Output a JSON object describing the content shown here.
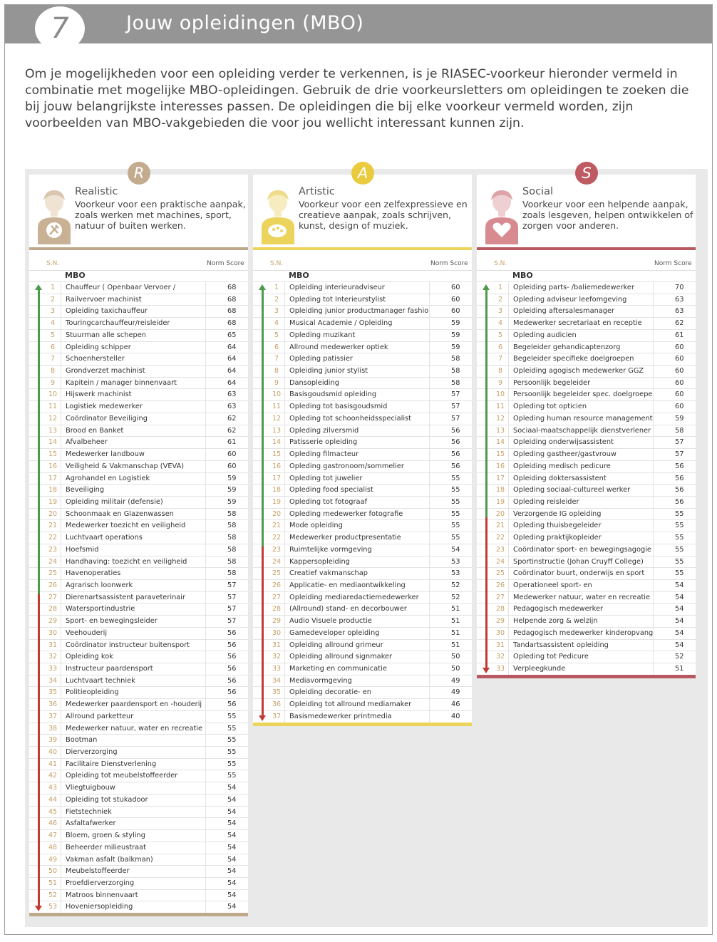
{
  "header": {
    "step": "7",
    "title": "Jouw opleidingen (MBO)"
  },
  "intro": "Om je mogelijkheden voor een opleiding verder te verkennen, is je RIASEC-voorkeur hieronder vermeld in combinatie met mogelijke MBO-opleidingen. Gebruik de drie voorkeursletters om opleidingen te zoeken die bij jouw belangrijkste interesses passen. De opleidingen die bij elke voorkeur vermeld worden, zijn voorbeelden van MBO-vakgebieden die voor jou wellicht interessant kunnen zijn.",
  "table_labels": {
    "sn": "S.N.",
    "norm_score": "Norm Score",
    "group": "MBO"
  },
  "colors": {
    "realistic": "#bfa98c",
    "artistic": "#ecd35c",
    "social": "#b85861",
    "up": "#4c9a4a",
    "down": "#c23b35"
  },
  "columns": [
    {
      "key": "r",
      "letter": "R",
      "title": "Realistic",
      "description": "Voorkeur voor een praktische aanpak, zoals werken met machines, sport, natuur of buiten werken.",
      "icon": "wrench-figure-icon",
      "items": [
        [
          "Chauffeur ( Openbaar Vervoer /",
          "68"
        ],
        [
          "Railvervoer machinist",
          "68"
        ],
        [
          "Opleiding taxichauffeur",
          "68"
        ],
        [
          "Touringcarchauffeur/reisleider",
          "68"
        ],
        [
          "Stuurman alle schepen",
          "65"
        ],
        [
          "Opleiding schipper",
          "64"
        ],
        [
          "Schoenhersteller",
          "64"
        ],
        [
          "Grondverzet machinist",
          "64"
        ],
        [
          "Kapitein / manager binnenvaart",
          "64"
        ],
        [
          "Hijswerk machinist",
          "63"
        ],
        [
          "Logistiek medewerker",
          "63"
        ],
        [
          "Coördinator Beveiliging",
          "62"
        ],
        [
          "Brood en Banket",
          "62"
        ],
        [
          "Afvalbeheer",
          "61"
        ],
        [
          "Medewerker landbouw",
          "60"
        ],
        [
          "Veiligheid & Vakmanschap (VEVA)",
          "60"
        ],
        [
          "Agrohandel en Logistiek",
          "59"
        ],
        [
          "Beveiliging",
          "59"
        ],
        [
          "Opleiding militair (defensie)",
          "59"
        ],
        [
          "Schoonmaak en Glazenwassen",
          "58"
        ],
        [
          "Medewerker toezicht en veiligheid",
          "58"
        ],
        [
          "Luchtvaart operations",
          "58"
        ],
        [
          "Hoefsmid",
          "58"
        ],
        [
          "Handhaving: toezicht en veiligheid",
          "58"
        ],
        [
          "Havenoperaties",
          "58"
        ],
        [
          "Agrarisch loonwerk",
          "57"
        ],
        [
          "Dierenartsassistent paraveterinair",
          "57"
        ],
        [
          "Watersportindustrie",
          "57"
        ],
        [
          "Sport- en bewegingsleider",
          "57"
        ],
        [
          "Veehouderij",
          "56"
        ],
        [
          "Coördinator instructeur buitensport",
          "56"
        ],
        [
          "Opleiding kok",
          "56"
        ],
        [
          "Instructeur paardensport",
          "56"
        ],
        [
          "Luchtvaart techniek",
          "56"
        ],
        [
          "Politieopleiding",
          "56"
        ],
        [
          "Medewerker paardensport en -houderij",
          "56"
        ],
        [
          "Allround parketteur",
          "55"
        ],
        [
          "Medewerker natuur, water en recreatie",
          "55"
        ],
        [
          "Bootman",
          "55"
        ],
        [
          "Dierverzorging",
          "55"
        ],
        [
          "Facilitaire Dienstverlening",
          "55"
        ],
        [
          "Opleiding tot meubelstoffeerder",
          "55"
        ],
        [
          "Vliegtuigbouw",
          "54"
        ],
        [
          "Opleiding tot stukadoor",
          "54"
        ],
        [
          "Fietstechniek",
          "54"
        ],
        [
          "Asfaltafwerker",
          "54"
        ],
        [
          "Bloem, groen & styling",
          "54"
        ],
        [
          "Beheerder milieustraat",
          "54"
        ],
        [
          "Vakman asfalt (balkman)",
          "54"
        ],
        [
          "Meubelstoffeerder",
          "54"
        ],
        [
          "Proefdierverzorging",
          "54"
        ],
        [
          "Matroos binnenvaart",
          "54"
        ],
        [
          "Hoveniersopleiding",
          "54"
        ]
      ]
    },
    {
      "key": "a",
      "letter": "A",
      "title": "Artistic",
      "description": "Voorkeur voor een zelfexpressieve en creatieve aanpak, zoals schrijven, kunst, design of muziek.",
      "icon": "palette-figure-icon",
      "items": [
        [
          "Opleiding interieuradviseur",
          "60"
        ],
        [
          "Opleding tot Interieurstylist",
          "60"
        ],
        [
          "Opleiding junior productmanager fashion",
          "60"
        ],
        [
          "Musical Academie / Opleiding",
          "59"
        ],
        [
          "Opleding muzikant",
          "59"
        ],
        [
          "Allround medewerker optiek",
          "59"
        ],
        [
          "Opleding patissier",
          "58"
        ],
        [
          "Opleiding junior stylist",
          "58"
        ],
        [
          "Dansopleiding",
          "58"
        ],
        [
          "Basisgoudsmid opleiding",
          "57"
        ],
        [
          "Opleding tot basisgoudsmid",
          "57"
        ],
        [
          "Opleding tot schoonheidsspecialist",
          "57"
        ],
        [
          "Opleding zilversmid",
          "56"
        ],
        [
          "Patisserie opleiding",
          "56"
        ],
        [
          "Opleding filmacteur",
          "56"
        ],
        [
          "Opleding gastronoom/sommelier",
          "56"
        ],
        [
          "Opleding tot juwelier",
          "55"
        ],
        [
          "Opleding food specialist",
          "55"
        ],
        [
          "Opleding tot fotograaf",
          "55"
        ],
        [
          "Opleding medewerker fotografie",
          "55"
        ],
        [
          "Mode opleiding",
          "55"
        ],
        [
          "Medewerker productpresentatie",
          "55"
        ],
        [
          "Ruimtelijke vormgeving",
          "54"
        ],
        [
          "Kappersopleiding",
          "53"
        ],
        [
          "Creatief vakmanschap",
          "53"
        ],
        [
          "Applicatie- en mediaontwikkeling",
          "52"
        ],
        [
          "Opleiding mediaredactiemedewerker",
          "52"
        ],
        [
          "(Allround) stand- en decorbouwer",
          "51"
        ],
        [
          "Audio Visuele productie",
          "51"
        ],
        [
          "Gamedeveloper opleiding",
          "51"
        ],
        [
          "Opleiding allround grimeur",
          "51"
        ],
        [
          "Opleiding allround signmaker",
          "50"
        ],
        [
          "Marketing en communicatie",
          "50"
        ],
        [
          "Mediavormgeving",
          "49"
        ],
        [
          "Opleiding decoratie- en",
          "49"
        ],
        [
          "Opleiding tot allround mediamaker",
          "46"
        ],
        [
          "Basismedewerker printmedia",
          "40"
        ]
      ]
    },
    {
      "key": "s",
      "letter": "S",
      "title": "Social",
      "description": "Voorkeur voor een helpende aanpak, zoals lesgeven, helpen ontwikkelen of zorgen voor anderen.",
      "icon": "heart-figure-icon",
      "items": [
        [
          "Opleiding parts- /baliemedewerker",
          "70"
        ],
        [
          "Opleding adviseur leefomgeving",
          "63"
        ],
        [
          "Opleiding aftersalesmanager",
          "63"
        ],
        [
          "Medewerker secretariaat en receptie",
          "62"
        ],
        [
          "Opleding audicien",
          "61"
        ],
        [
          "Begeleider gehandicaptenzorg",
          "60"
        ],
        [
          "Begeleider specifieke doelgroepen",
          "60"
        ],
        [
          "Opleiding agogisch medewerker GGZ",
          "60"
        ],
        [
          "Persoonlijk begeleider",
          "60"
        ],
        [
          "Persoonlijk begeleider spec. doelgroepen",
          "60"
        ],
        [
          "Opleding tot opticien",
          "60"
        ],
        [
          "Opleding human resource management",
          "59"
        ],
        [
          "Sociaal-maatschappelijk dienstverlener",
          "58"
        ],
        [
          "Opleiding onderwijsassistent",
          "57"
        ],
        [
          "Opleding gastheer/gastvrouw",
          "57"
        ],
        [
          "Opleiding medisch pedicure",
          "56"
        ],
        [
          "Opleiding doktersassistent",
          "56"
        ],
        [
          "Opleding sociaal-cultureel werker",
          "56"
        ],
        [
          "Opleding reisleider",
          "56"
        ],
        [
          "Verzorgende IG opleiding",
          "55"
        ],
        [
          "Opleding thuisbegeleider",
          "55"
        ],
        [
          "Opleding praktijkopleider",
          "55"
        ],
        [
          "Coördinator sport- en bewegingsagogie",
          "55"
        ],
        [
          "Sportinstructie (Johan Cruyff College)",
          "55"
        ],
        [
          "Coördinator buurt, onderwijs en sport",
          "55"
        ],
        [
          "Operationeel sport- en",
          "54"
        ],
        [
          "Medewerker natuur, water en recreatie",
          "54"
        ],
        [
          "Pedagogisch medewerker",
          "54"
        ],
        [
          "Helpende zorg & welzijn",
          "54"
        ],
        [
          "Pedagogisch medewerker kinderopvang",
          "54"
        ],
        [
          "Tandartsassistent opleiding",
          "54"
        ],
        [
          "Opleding tot Pedicure",
          "52"
        ],
        [
          "Verpleegkunde",
          "51"
        ]
      ]
    }
  ]
}
